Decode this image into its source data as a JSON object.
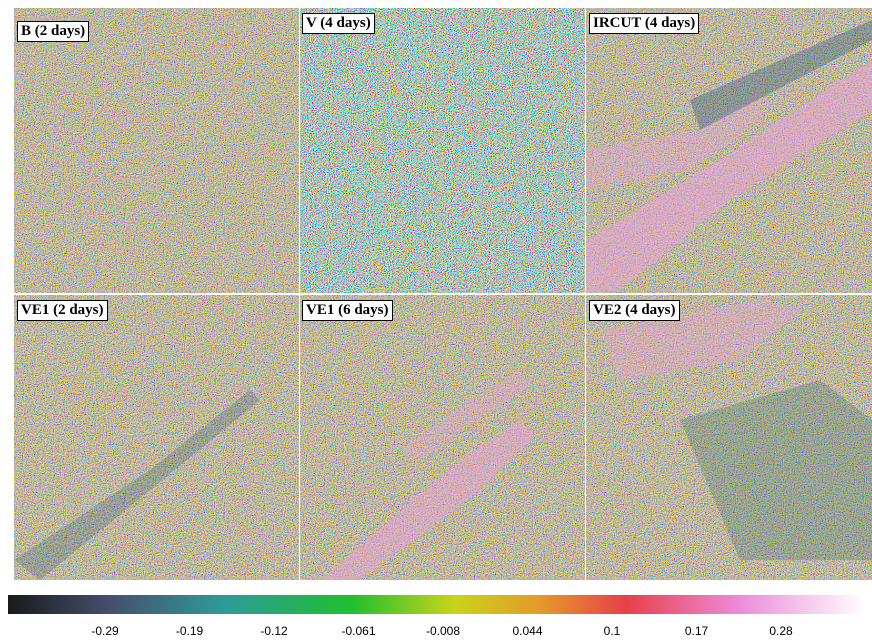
{
  "panels": [
    {
      "label": "B (2 days)"
    },
    {
      "label": "V (4 days)"
    },
    {
      "label": "IRCUT (4 days)"
    },
    {
      "label": "VE1 (2 days)"
    },
    {
      "label": "VE1 (6 days)"
    },
    {
      "label": "VE2 (4 days)"
    }
  ],
  "colorbar": {
    "ticks": [
      -0.29,
      -0.19,
      -0.12,
      -0.061,
      -0.008,
      0.044,
      0.1,
      0.17,
      0.28
    ]
  }
}
